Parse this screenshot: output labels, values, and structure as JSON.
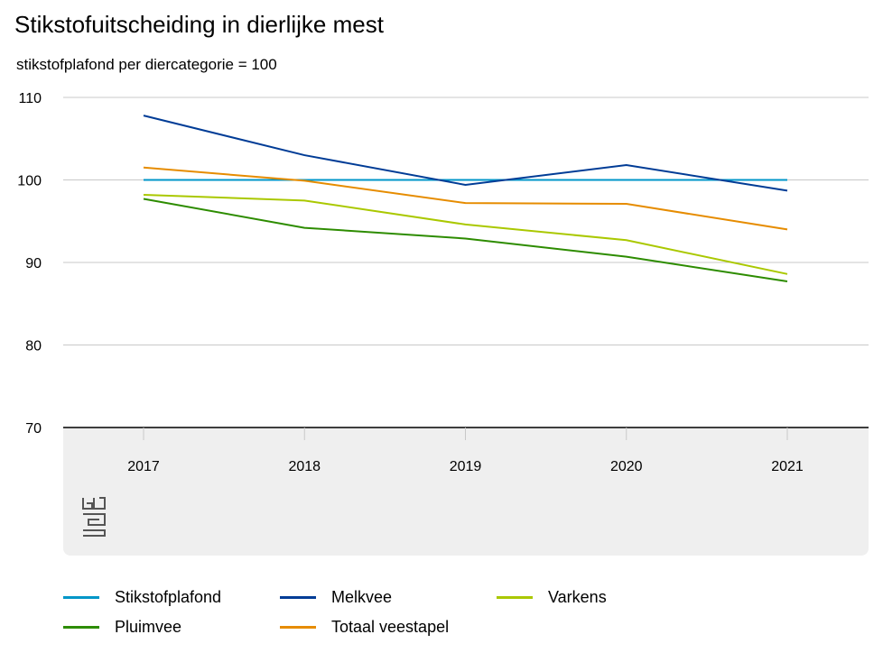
{
  "chart_data": {
    "type": "line",
    "title": "Stikstofuitscheiding in dierlijke mest",
    "subtitle": "stikstofplafond per diercategorie = 100",
    "xlabel": "",
    "ylabel": "",
    "x": [
      "2017",
      "2018",
      "2019",
      "2020",
      "2021"
    ],
    "ylim": [
      70,
      110
    ],
    "yticks": [
      110,
      100,
      90,
      80,
      70
    ],
    "grid": true,
    "legend_position": "bottom",
    "series": [
      {
        "name": "Stikstofplafond",
        "color": "#0096c8",
        "values": [
          100,
          100,
          100,
          100,
          100
        ]
      },
      {
        "name": "Melkvee",
        "color": "#003c96",
        "values": [
          107.8,
          103.0,
          99.4,
          101.8,
          98.7
        ]
      },
      {
        "name": "Varkens",
        "color": "#aac800",
        "values": [
          98.2,
          97.5,
          94.6,
          92.7,
          88.6
        ]
      },
      {
        "name": "Pluimvee",
        "color": "#2d8c00",
        "values": [
          97.7,
          94.2,
          92.9,
          90.7,
          87.7
        ]
      },
      {
        "name": "Totaal veestapel",
        "color": "#e68c00",
        "values": [
          101.5,
          99.9,
          97.2,
          97.1,
          94.0
        ]
      }
    ]
  },
  "legend_order": [
    "Stikstofplafond",
    "Melkvee",
    "Varkens",
    "Pluimvee",
    "Totaal veestapel"
  ],
  "logo": {
    "icon": "cbs-logo-icon",
    "text": "cbs"
  }
}
